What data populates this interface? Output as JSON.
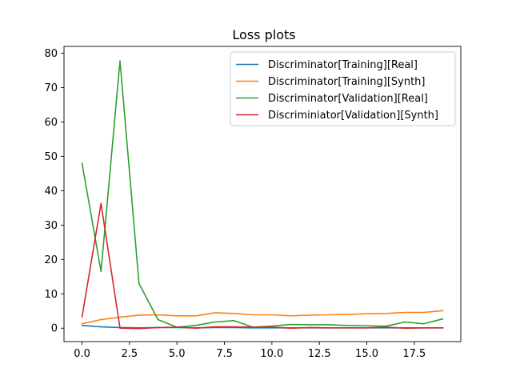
{
  "chart_data": {
    "type": "line",
    "title": "Loss plots",
    "xlabel": "",
    "ylabel": "",
    "xlim": [
      -0.95,
      19.95
    ],
    "ylim": [
      -3.9,
      82
    ],
    "xticks": [
      0.0,
      2.5,
      5.0,
      7.5,
      10.0,
      12.5,
      15.0,
      17.5
    ],
    "xtick_labels": [
      "0.0",
      "2.5",
      "5.0",
      "7.5",
      "10.0",
      "12.5",
      "15.0",
      "17.5"
    ],
    "yticks": [
      0,
      10,
      20,
      30,
      40,
      50,
      60,
      70,
      80
    ],
    "ytick_labels": [
      "0",
      "10",
      "20",
      "30",
      "40",
      "50",
      "60",
      "70",
      "80"
    ],
    "grid": false,
    "legend_position": "top-right",
    "x": [
      0,
      1,
      2,
      3,
      4,
      5,
      6,
      7,
      8,
      9,
      10,
      11,
      12,
      13,
      14,
      15,
      16,
      17,
      18,
      19
    ],
    "series": [
      {
        "name": "Discriminator[Training][Real]",
        "color": "#1f77b4",
        "values": [
          0.8,
          0.4,
          0.2,
          0.1,
          0.2,
          0.2,
          0.1,
          0.2,
          0.2,
          0.1,
          0.1,
          0.1,
          0.1,
          0.1,
          0.1,
          0.1,
          0.1,
          0.1,
          0.1,
          0.1
        ]
      },
      {
        "name": "Discriminator[Training][Synth]",
        "color": "#ff7f0e",
        "values": [
          1.3,
          2.5,
          3.2,
          3.8,
          3.9,
          3.6,
          3.6,
          4.5,
          4.3,
          3.9,
          3.9,
          3.6,
          3.8,
          3.9,
          4.0,
          4.2,
          4.3,
          4.6,
          4.6,
          5.1
        ]
      },
      {
        "name": "Discriminator[Validation][Real]",
        "color": "#2ca02c",
        "values": [
          48.0,
          16.5,
          77.8,
          13.0,
          2.5,
          0.3,
          0.8,
          1.8,
          2.2,
          0.3,
          0.6,
          1.1,
          1.0,
          1.0,
          0.8,
          0.7,
          0.6,
          1.8,
          1.3,
          2.7
        ]
      },
      {
        "name": "Discriminiator[Validation][Synth]",
        "color": "#d62728",
        "values": [
          3.3,
          36.3,
          0.0,
          -0.1,
          0.2,
          0.3,
          0.0,
          0.4,
          0.4,
          0.3,
          0.3,
          0.0,
          0.2,
          0.1,
          0.1,
          0.1,
          0.3,
          0.0,
          0.1,
          0.1
        ]
      }
    ]
  }
}
